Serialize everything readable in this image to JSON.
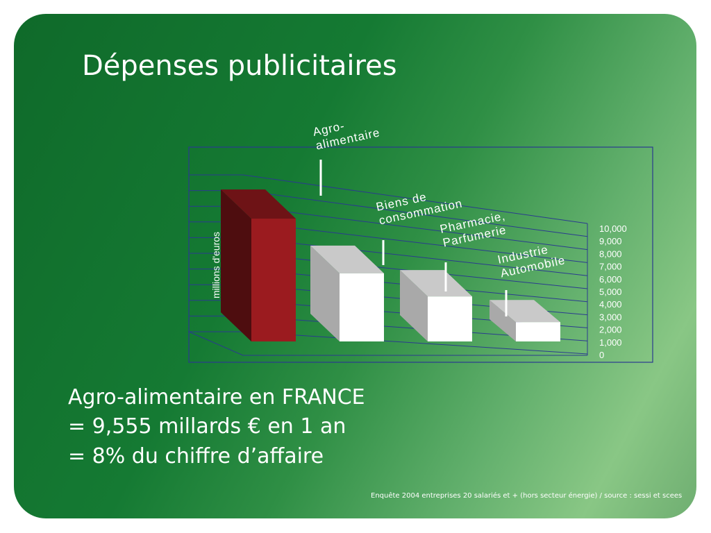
{
  "slide": {
    "title": "Dépenses publicitaires",
    "summary": [
      "Agro-alimentaire en FRANCE",
      "= 9,555 millards € en 1 an",
      "= 8% du chiffre d’affaire"
    ],
    "footnote": "Enquête 2004 entreprises 20 salariés et + (hors secteur énergie) / source : sessi et scees"
  },
  "colors": {
    "bar_agro": "#9b1b1f",
    "bar_other": "#ffffff",
    "frame": "#2a3a8f"
  },
  "chart_data": {
    "type": "bar",
    "view": "3d",
    "categories": [
      "Agro-alimentaire",
      "Biens de consommation",
      "Pharmacie, Parfumerie",
      "Industrie Automobile"
    ],
    "category_lines": [
      [
        "Agro-",
        "alimentaire"
      ],
      [
        "Biens de",
        "consommation"
      ],
      [
        "Pharmacie,",
        "Parfumerie"
      ],
      [
        "Industrie",
        "Automobile"
      ]
    ],
    "values": [
      9555,
      5300,
      3500,
      1500
    ],
    "ylabel": "millions d'euros",
    "ylim": [
      0,
      10000
    ],
    "yticks": [
      "10,000",
      "9,000",
      "8,000",
      "7,000",
      "6,000",
      "5,000",
      "4,000",
      "3,000",
      "2,000",
      "1,000",
      "0"
    ],
    "grid": true,
    "legend": "none"
  }
}
